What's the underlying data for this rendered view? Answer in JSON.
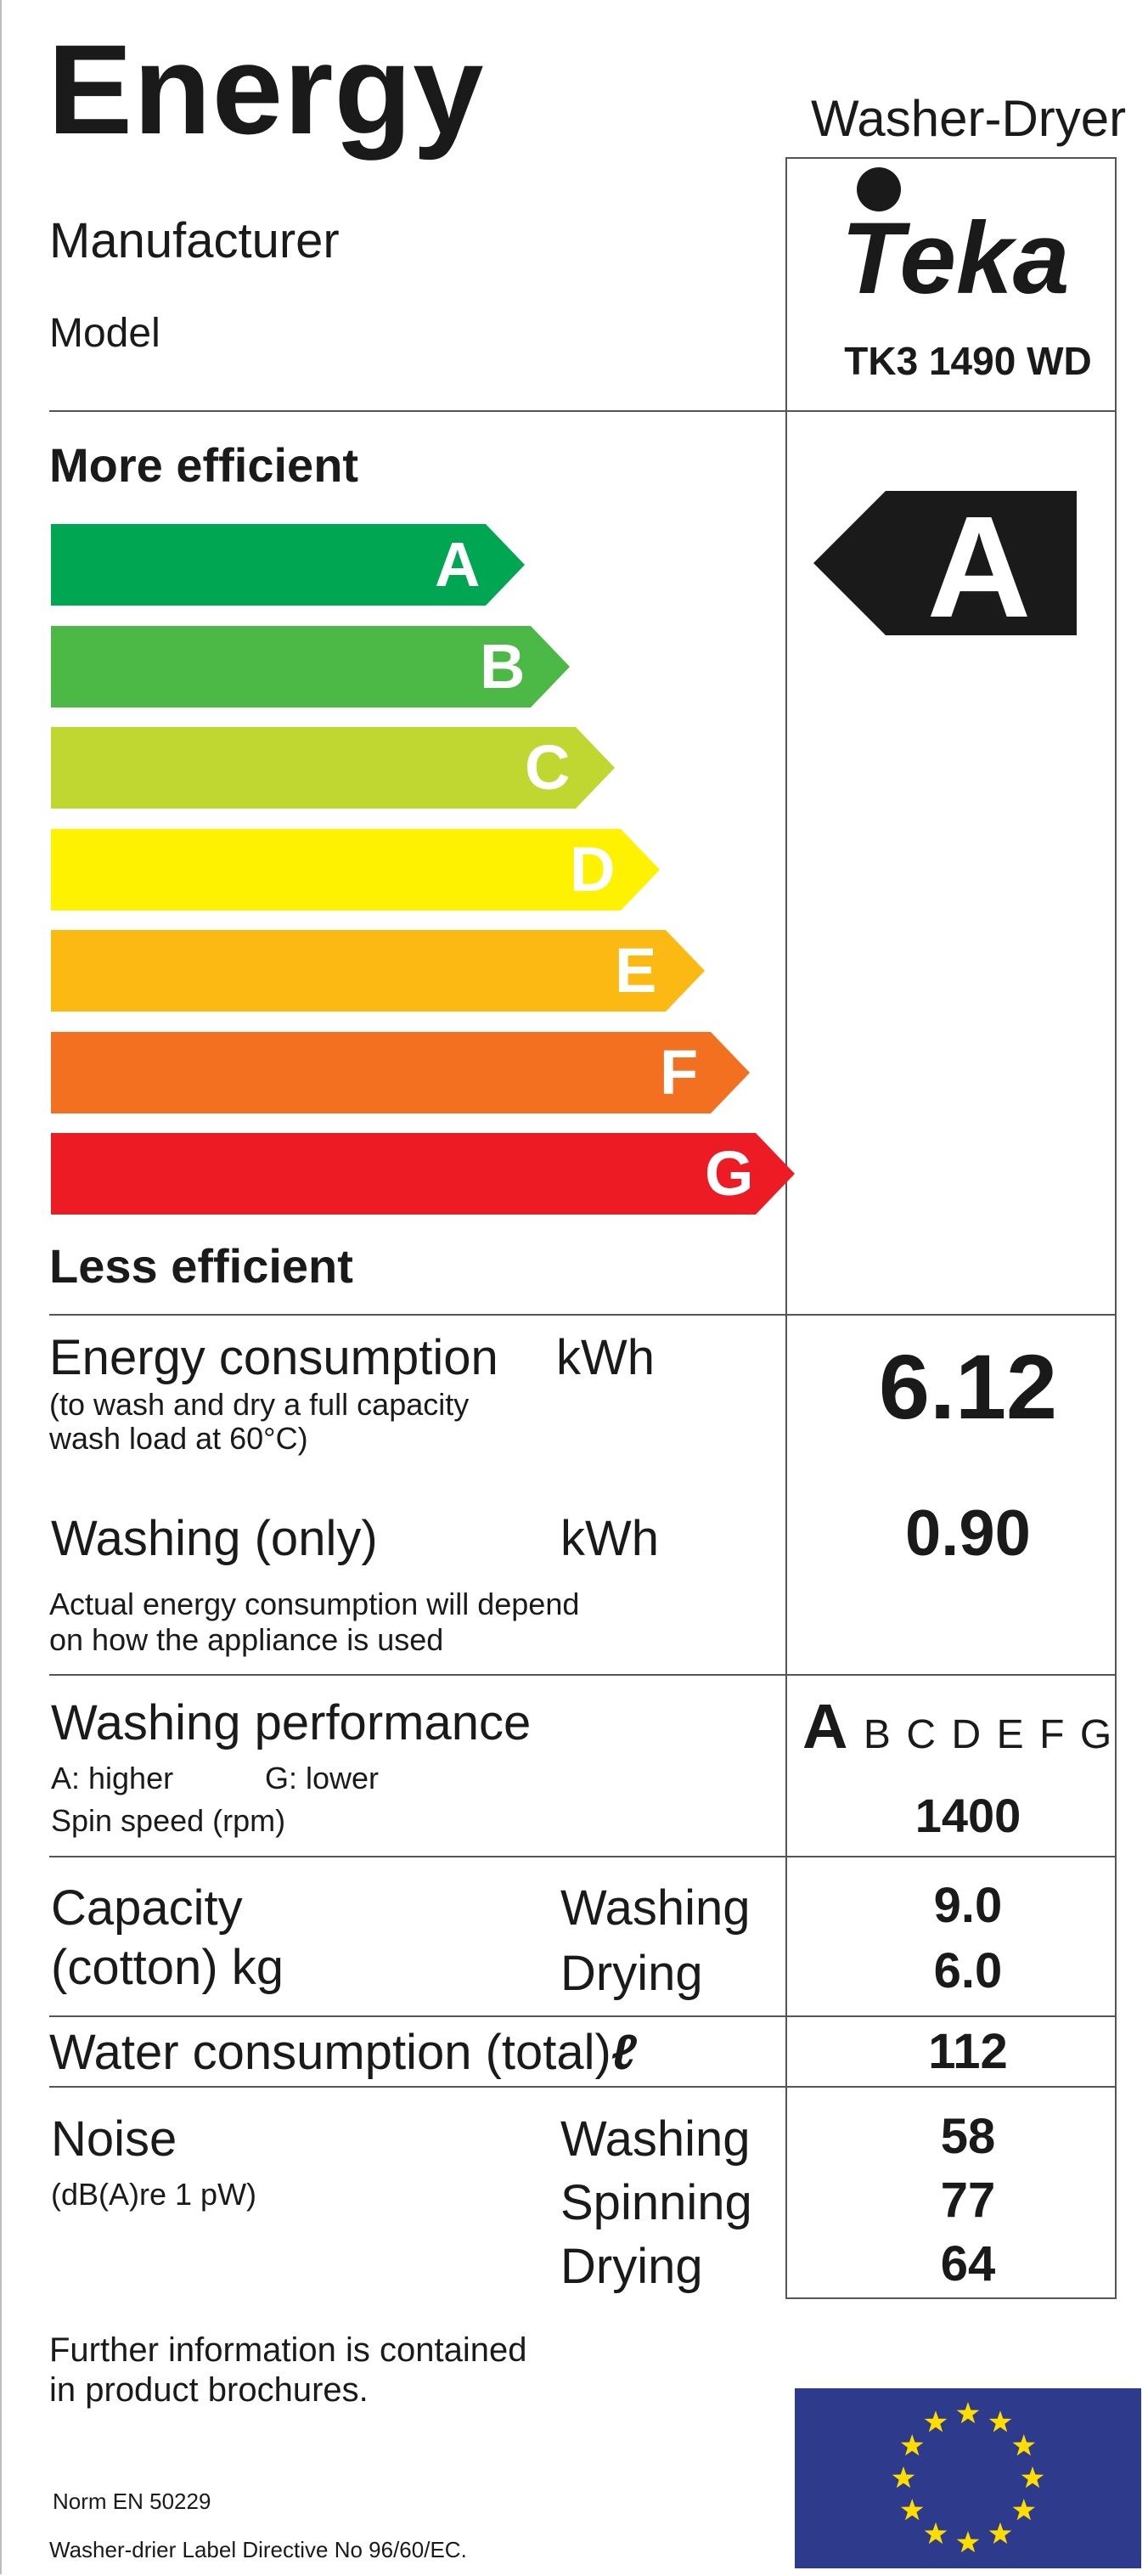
{
  "header": {
    "title": "Energy",
    "appliance_type": "Washer-Dryer",
    "manufacturer_label": "Manufacturer",
    "model_label": "Model",
    "brand_logo_text": "Teka",
    "model_name": "TK3 1490 WD"
  },
  "efficiency": {
    "more_label": "More efficient",
    "less_label": "Less efficient",
    "classes": [
      {
        "letter": "A",
        "color": "#00a651"
      },
      {
        "letter": "B",
        "color": "#4cb947"
      },
      {
        "letter": "C",
        "color": "#bfd730"
      },
      {
        "letter": "D",
        "color": "#fff200"
      },
      {
        "letter": "E",
        "color": "#fdb913"
      },
      {
        "letter": "F",
        "color": "#f37021"
      },
      {
        "letter": "G",
        "color": "#ed1c24"
      }
    ],
    "rating": "A",
    "rating_color": "#1a1a1a"
  },
  "energy": {
    "label": "Energy consumption",
    "unit": "kWh",
    "note_line1": "(to wash and dry a full capacity",
    "note_line2": "wash load at 60°C)",
    "value": "6.12"
  },
  "washing_only": {
    "label": "Washing (only)",
    "unit": "kWh",
    "value": "0.90",
    "note_line1": "Actual energy consumption will depend",
    "note_line2": "on how the appliance is used"
  },
  "washing_performance": {
    "label": "Washing performance",
    "scale_note_a": "A:  higher",
    "scale_note_g": "G:  lower",
    "rating": "A",
    "other_classes": [
      "B",
      "C",
      "D",
      "E",
      "F",
      "G"
    ]
  },
  "spin": {
    "label": "Spin speed (rpm)",
    "value": "1400"
  },
  "capacity": {
    "label_line1": "Capacity",
    "label_line2": "(cotton) kg",
    "washing_label": "Washing",
    "washing_value": "9.0",
    "drying_label": "Drying",
    "drying_value": "6.0"
  },
  "water": {
    "label": "Water consumption (total)",
    "unit": "ℓ",
    "value": "112"
  },
  "noise": {
    "label": "Noise",
    "unit_note": "(dB(A)re 1 pW)",
    "washing_label": "Washing",
    "washing_value": "58",
    "spinning_label": "Spinning",
    "spinning_value": "77",
    "drying_label": "Drying",
    "drying_value": "64"
  },
  "footer": {
    "info_line1": "Further information is contained",
    "info_line2": "in product brochures.",
    "norm": "Norm EN 50229",
    "directive": "Washer-drier Label Directive No 96/60/EC.",
    "flag_color": "#2e3a8c",
    "star_color": "#ffdd00"
  }
}
